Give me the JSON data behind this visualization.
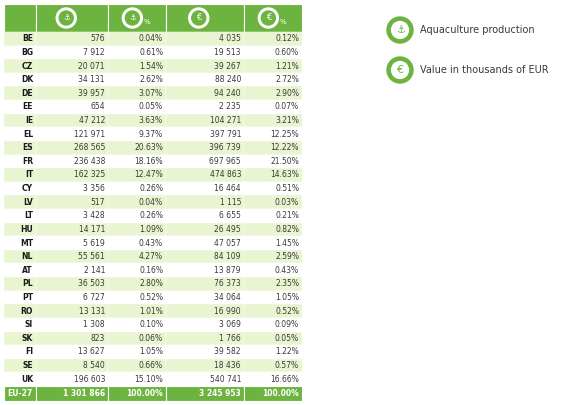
{
  "rows": [
    [
      "BE",
      "576",
      "0.04%",
      "4 035",
      "0.12%"
    ],
    [
      "BG",
      "7 912",
      "0.61%",
      "19 513",
      "0.60%"
    ],
    [
      "CZ",
      "20 071",
      "1.54%",
      "39 267",
      "1.21%"
    ],
    [
      "DK",
      "34 131",
      "2.62%",
      "88 240",
      "2.72%"
    ],
    [
      "DE",
      "39 957",
      "3.07%",
      "94 240",
      "2.90%"
    ],
    [
      "EE",
      "654",
      "0.05%",
      "2 235",
      "0.07%"
    ],
    [
      "IE",
      "47 212",
      "3.63%",
      "104 271",
      "3.21%"
    ],
    [
      "EL",
      "121 971",
      "9.37%",
      "397 791",
      "12.25%"
    ],
    [
      "ES",
      "268 565",
      "20.63%",
      "396 739",
      "12.22%"
    ],
    [
      "FR",
      "236 438",
      "18.16%",
      "697 965",
      "21.50%"
    ],
    [
      "IT",
      "162 325",
      "12.47%",
      "474 863",
      "14.63%"
    ],
    [
      "CY",
      "3 356",
      "0.26%",
      "16 464",
      "0.51%"
    ],
    [
      "LV",
      "517",
      "0.04%",
      "1 115",
      "0.03%"
    ],
    [
      "LT",
      "3 428",
      "0.26%",
      "6 655",
      "0.21%"
    ],
    [
      "HU",
      "14 171",
      "1.09%",
      "26 495",
      "0.82%"
    ],
    [
      "MT",
      "5 619",
      "0.43%",
      "47 057",
      "1.45%"
    ],
    [
      "NL",
      "55 561",
      "4.27%",
      "84 109",
      "2.59%"
    ],
    [
      "AT",
      "2 141",
      "0.16%",
      "13 879",
      "0.43%"
    ],
    [
      "PL",
      "36 503",
      "2.80%",
      "76 373",
      "2.35%"
    ],
    [
      "PT",
      "6 727",
      "0.52%",
      "34 064",
      "1.05%"
    ],
    [
      "RO",
      "13 131",
      "1.01%",
      "16 990",
      "0.52%"
    ],
    [
      "SI",
      "1 308",
      "0.10%",
      "3 069",
      "0.09%"
    ],
    [
      "SK",
      "823",
      "0.06%",
      "1 766",
      "0.05%"
    ],
    [
      "FI",
      "13 627",
      "1.05%",
      "39 582",
      "1.22%"
    ],
    [
      "SE",
      "8 540",
      "0.66%",
      "18 436",
      "0.57%"
    ],
    [
      "UK",
      "196 603",
      "15.10%",
      "540 741",
      "16.66%"
    ]
  ],
  "totals": [
    "EU-27",
    "1 301 866",
    "100.00%",
    "3 245 953",
    "100.00%"
  ],
  "header_green": "#6db33f",
  "row_light_green": "#e8f5d0",
  "row_white": "#ffffff",
  "text_dark": "#3a3a3a",
  "text_bold_dark": "#1a1a1a",
  "legend_text1": "Aquaculture production",
  "legend_text2": "Value in thousands of EUR"
}
